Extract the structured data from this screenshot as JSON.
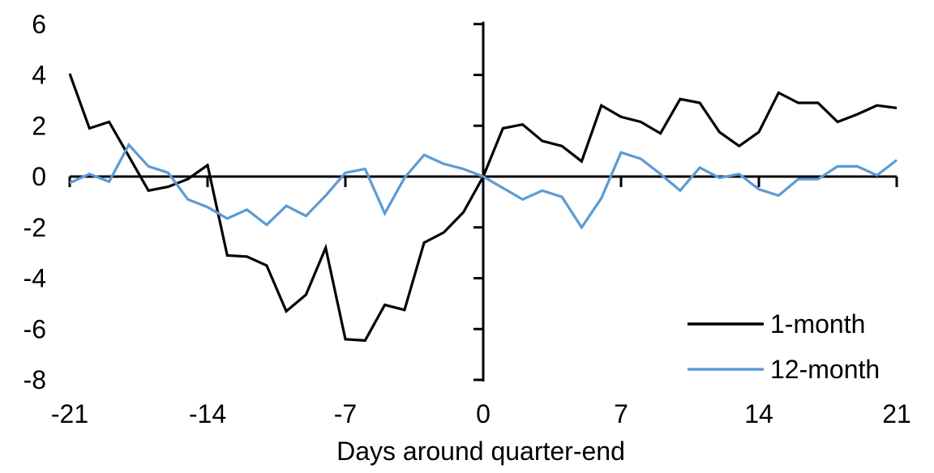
{
  "chart_data": {
    "type": "line",
    "title": "",
    "xlabel": "Days around quarter-end",
    "ylabel": "",
    "xlim": [
      -21,
      21
    ],
    "ylim": [
      -8,
      6
    ],
    "x_ticks": [
      -21,
      -14,
      -7,
      0,
      7,
      14,
      21
    ],
    "y_ticks": [
      6,
      4,
      2,
      0,
      -2,
      -4,
      -6,
      -8
    ],
    "grid": false,
    "legend_position": "lower-right",
    "axis_color": "#000000",
    "x": [
      -21,
      -20,
      -19,
      -18,
      -17,
      -16,
      -15,
      -14,
      -13,
      -12,
      -11,
      -10,
      -9,
      -8,
      -7,
      -6,
      -5,
      -4,
      -3,
      -2,
      -1,
      0,
      1,
      2,
      3,
      4,
      5,
      6,
      7,
      8,
      9,
      10,
      11,
      12,
      13,
      14,
      15,
      16,
      17,
      18,
      19,
      20,
      21
    ],
    "series": [
      {
        "name": "1-month",
        "color": "#000000",
        "values": [
          4.05,
          1.9,
          2.15,
          0.8,
          -0.55,
          -0.4,
          -0.1,
          0.45,
          -3.1,
          -3.15,
          -3.5,
          -5.3,
          -4.65,
          -2.8,
          -6.4,
          -6.45,
          -5.05,
          -5.25,
          -2.6,
          -2.2,
          -1.4,
          0,
          1.9,
          2.05,
          1.4,
          1.2,
          0.6,
          2.8,
          2.35,
          2.15,
          1.7,
          3.05,
          2.9,
          1.75,
          1.2,
          1.75,
          3.3,
          2.9,
          2.9,
          2.15,
          2.45,
          2.8,
          2.7
        ]
      },
      {
        "name": "12-month",
        "color": "#5B9BD5",
        "values": [
          -0.25,
          0.1,
          -0.2,
          1.25,
          0.4,
          0.15,
          -0.9,
          -1.2,
          -1.65,
          -1.3,
          -1.9,
          -1.15,
          -1.55,
          -0.75,
          0.15,
          0.3,
          -1.45,
          -0.05,
          0.85,
          0.5,
          0.3,
          0,
          -0.45,
          -0.9,
          -0.55,
          -0.8,
          -2.0,
          -0.85,
          0.95,
          0.7,
          0.1,
          -0.55,
          0.35,
          -0.05,
          0.1,
          -0.5,
          -0.75,
          -0.1,
          -0.1,
          0.4,
          0.4,
          0.05,
          0.65
        ]
      }
    ]
  }
}
